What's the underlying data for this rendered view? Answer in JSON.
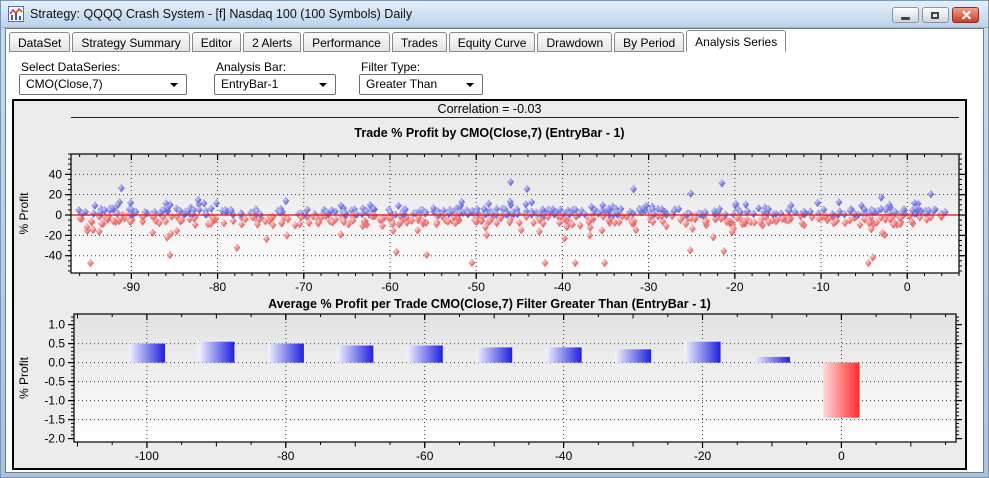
{
  "window": {
    "title": "Strategy: QQQQ Crash System - [f] Nasdaq 100 (100 Symbols) Daily",
    "buttons": [
      "minimize",
      "restore",
      "close"
    ]
  },
  "tabs": {
    "items": [
      "DataSet",
      "Strategy Summary",
      "Editor",
      "2 Alerts",
      "Performance",
      "Trades",
      "Equity Curve",
      "Drawdown",
      "By Period",
      "Analysis Series"
    ],
    "active": "Analysis Series"
  },
  "controls": {
    "dataseries": {
      "label": "Select DataSeries:",
      "value": "CMO(Close,7)"
    },
    "analysis_bar": {
      "label": "Analysis Bar:",
      "value": "EntryBar-1"
    },
    "filter_type": {
      "label": "Filter Type:",
      "value": "Greater Than"
    }
  },
  "correlation_text": "Correlation = -0.03",
  "colors": {
    "titlebar_top": "#e6f0fb",
    "titlebar_bottom": "#bcd2ea",
    "frame": "#a9c3df",
    "close_button": "#c83d2b",
    "panel_bg": "#ececec",
    "win_point": "#4040cc",
    "loss_point": "#e03838",
    "zero_line": "#dd1111",
    "bar_positive": "#2020e0",
    "bar_negative": "#ff2a2a"
  },
  "chart_data": [
    {
      "type": "scatter",
      "title": "Trade % Profit by CMO(Close,7) (EntryBar - 1)",
      "ylabel": "% Profit",
      "xlim": [
        -97,
        6
      ],
      "ylim": [
        -57,
        60
      ],
      "xticks": [
        -90,
        -80,
        -70,
        -60,
        -50,
        -40,
        -30,
        -20,
        -10,
        0
      ],
      "xtick_labels": [
        "-90",
        "-80",
        "-70",
        "-60",
        "-50",
        "-40",
        "-30",
        "-20",
        "-10",
        "0"
      ],
      "x_minor_step": 2,
      "yticks": [
        40,
        20,
        0,
        -20,
        -40
      ],
      "ytick_labels": [
        "40",
        "20",
        "0",
        "-20",
        "-40"
      ],
      "y_minor_step": 5,
      "grid_y": [
        40,
        20,
        -20,
        -40
      ],
      "zero_line": 0,
      "correlation": -0.03,
      "points": {
        "count": 740,
        "seed": 987654321,
        "win_rate": 0.52,
        "x_range": [
          -96.5,
          4.5
        ],
        "y_clip": [
          -47,
          47
        ],
        "band_scale": 6,
        "mid_outlier_rate": 0.2,
        "mid_outlier_extra": 10,
        "far_outlier_rate": 0.03,
        "far_outlier_base": 8,
        "far_outlier_extra": 22,
        "loss_stretch": 1.5,
        "note": "dense cloud of ~700 trades hugging 0: winners (blue) mostly 0 to +8 with outliers to +47, losers (red) 0 to -12 with outliers to -47, spread uniformly over CMO -96 to +4"
      }
    },
    {
      "type": "bar",
      "title": "Average % Profit per Trade CMO(Close,7) Filter Greater Than (EntryBar - 1)",
      "ylabel": "% Profit",
      "categories": [
        -100,
        -90,
        -80,
        -70,
        -60,
        -50,
        -40,
        -30,
        -20,
        -10,
        0
      ],
      "values": [
        0.5,
        0.55,
        0.5,
        0.45,
        0.45,
        0.4,
        0.4,
        0.35,
        0.55,
        0.15,
        -1.45
      ],
      "xlim": [
        -110.5,
        16.5
      ],
      "ylim": [
        -2.09,
        1.28
      ],
      "xticks": [
        -100,
        -80,
        -60,
        -40,
        -20,
        0
      ],
      "xtick_labels": [
        "-100",
        "-80",
        "-60",
        "-40",
        "-20",
        "0"
      ],
      "x_minor_step": 5,
      "yticks": [
        1.0,
        0.5,
        0.0,
        -0.5,
        -1.0,
        -1.5,
        -2.0
      ],
      "ytick_labels": [
        "1.0",
        "0.5",
        "0.0",
        "-0.5",
        "-1.0",
        "-1.5",
        "-2.0"
      ],
      "y_minor_step": 0.1,
      "grid_y": [
        0.5,
        0,
        -0.5,
        -1,
        -1.5
      ],
      "bar_width_units": 5.2
    }
  ]
}
